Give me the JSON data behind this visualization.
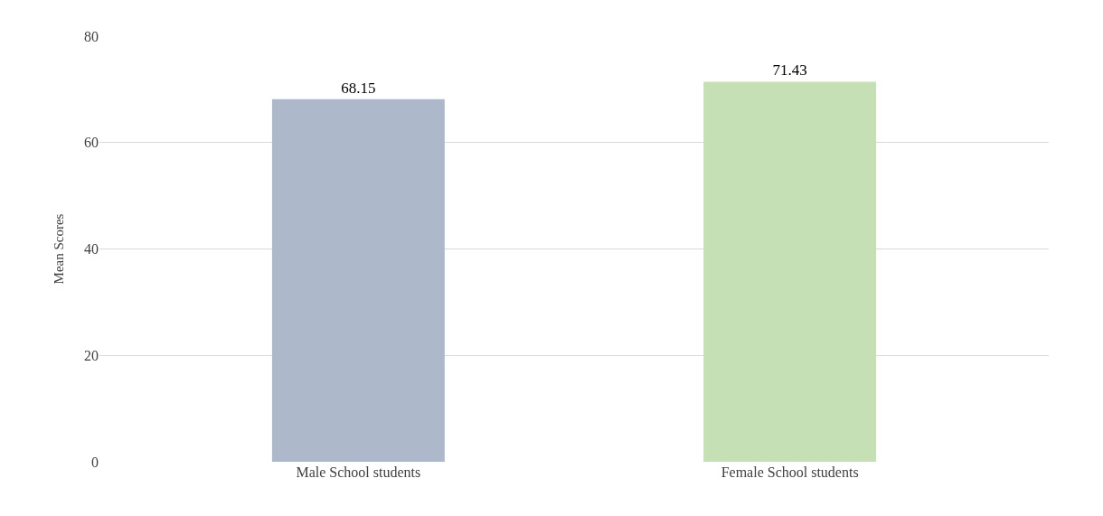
{
  "chart_data": {
    "type": "bar",
    "ylabel": "Mean Scores",
    "categories": [
      "Male School students",
      "Female School students"
    ],
    "values": [
      68.15,
      71.43
    ],
    "colors": [
      "#adb9ca",
      "#c5e0b4"
    ],
    "ylim": [
      0,
      80
    ],
    "yticks": [
      0,
      20,
      40,
      60,
      80
    ],
    "grid": "y",
    "data_labels": true
  }
}
